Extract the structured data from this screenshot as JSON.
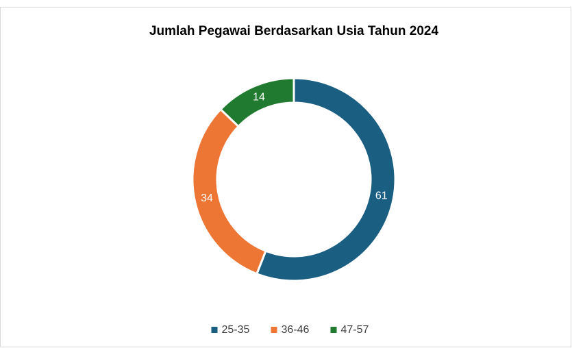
{
  "chart_data": {
    "type": "donut",
    "title": "Jumlah Pegawai Berdasarkan Usia Tahun 2024",
    "categories": [
      "25-35",
      "36-46",
      "47-57"
    ],
    "values": [
      61,
      34,
      14
    ],
    "colors": [
      "#1a5e82",
      "#ed7634",
      "#207a2f"
    ],
    "legend": "bottom"
  }
}
